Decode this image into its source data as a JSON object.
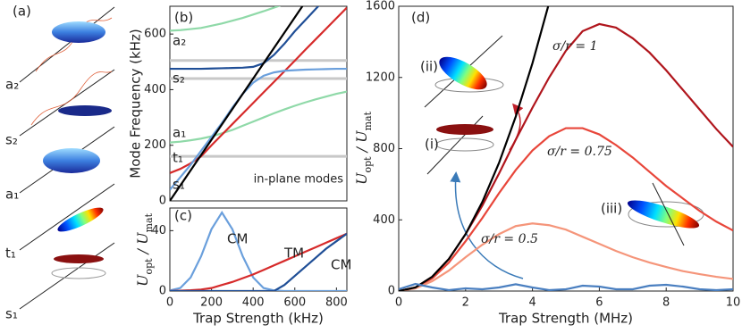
{
  "panel_a": {
    "label": "(a)",
    "modes": [
      "a₂",
      "s₂",
      "a₁",
      "t₁",
      "s₁"
    ]
  },
  "chart_data": [
    {
      "type": "line",
      "panel_label": "(b)",
      "ylabel": "Mode Frequency (kHz)",
      "x": [
        0,
        50,
        100,
        150,
        200,
        250,
        300,
        350,
        400,
        450,
        500,
        550,
        600,
        650,
        700,
        750,
        800,
        850
      ],
      "xlim": [
        0,
        850
      ],
      "ylim": [
        0,
        700
      ],
      "yticks": [
        0,
        200,
        400,
        600
      ],
      "reference_lines": {
        "values": [
          160,
          440,
          505
        ],
        "color": "#c8c8c8"
      },
      "annotation": "in-plane modes",
      "series": [
        {
          "name": "a₂",
          "color": "#8fd9a8",
          "values": [
            612,
            614,
            618,
            622,
            630,
            638,
            648,
            658,
            670,
            682,
            695,
            708,
            null,
            null,
            null,
            null,
            null,
            null
          ]
        },
        {
          "name": "s₂",
          "color": "#1f4e96",
          "values": [
            475,
            475,
            475,
            475,
            476,
            477,
            478,
            479,
            482,
            495,
            525,
            565,
            610,
            650,
            690,
            730,
            null,
            null
          ]
        },
        {
          "name": "a₁",
          "color": "#8fd9a8",
          "values": [
            210,
            213,
            218,
            224,
            232,
            243,
            255,
            270,
            285,
            300,
            315,
            329,
            342,
            354,
            365,
            375,
            385,
            393
          ]
        },
        {
          "name": "t₁",
          "color": "#d62a2a",
          "values": [
            100,
            115,
            135,
            160,
            200,
            238,
            276,
            314,
            352,
            390,
            428,
            466,
            504,
            543,
            581,
            619,
            657,
            695
          ]
        },
        {
          "name": "s₁",
          "color": "#6a9fdc",
          "values": [
            40,
            85,
            130,
            180,
            230,
            280,
            335,
            385,
            425,
            450,
            462,
            468,
            470,
            472,
            473,
            474,
            475,
            475
          ]
        },
        {
          "color": "#000000",
          "values": [
            0,
            55,
            110,
            165,
            220,
            275,
            330,
            385,
            440,
            495,
            550,
            605,
            660,
            715,
            null,
            null,
            null,
            null
          ]
        }
      ]
    },
    {
      "type": "line",
      "panel_label": "(c)",
      "ylabel": [
        {
          "text": "U"
        },
        {
          "text": "opt",
          "sub": true
        },
        {
          "text": " / "
        },
        {
          "text": "U"
        },
        {
          "text": "mat",
          "sub": true
        }
      ],
      "xlabel": "Trap Strength (kHz)",
      "x": [
        0,
        50,
        100,
        150,
        200,
        250,
        300,
        350,
        400,
        450,
        500,
        550,
        600,
        650,
        700,
        750,
        800,
        850
      ],
      "xlim": [
        0,
        850
      ],
      "xticks": [
        0,
        200,
        400,
        600,
        800
      ],
      "ylim": [
        0,
        55
      ],
      "yticks": [
        0,
        40
      ],
      "series": [
        {
          "name": "CM",
          "color": "#6a9fdc",
          "values": [
            0.4,
            2,
            9,
            23,
            41,
            52,
            41,
            23,
            9,
            2,
            0.4,
            0,
            0,
            0,
            0,
            0,
            0,
            0
          ]
        },
        {
          "name": "TM",
          "color": "#d62a2a",
          "values": [
            0,
            0.2,
            0.5,
            1,
            2,
            4,
            6,
            8.5,
            11,
            14,
            17,
            20,
            23,
            26,
            29,
            32,
            35,
            38
          ]
        },
        {
          "name": "CM",
          "color": "#1f4e96",
          "values": [
            0,
            0,
            0,
            0,
            0,
            0,
            0,
            0,
            0,
            0,
            0,
            4,
            10,
            16,
            22,
            28,
            33,
            38
          ]
        }
      ]
    },
    {
      "type": "line",
      "panel_label": "(d)",
      "ylabel": [
        {
          "text": "U"
        },
        {
          "text": "opt",
          "sub": true
        },
        {
          "text": " / "
        },
        {
          "text": "U"
        },
        {
          "text": "mat",
          "sub": true
        }
      ],
      "xlabel": "Trap Strength (MHz)",
      "x": [
        0,
        0.5,
        1,
        1.5,
        2,
        2.5,
        3,
        3.5,
        4,
        4.5,
        5,
        5.5,
        6,
        6.5,
        7,
        7.5,
        8,
        8.5,
        9,
        9.5,
        10
      ],
      "xlim": [
        0,
        10
      ],
      "xticks": [
        0,
        2,
        4,
        6,
        8,
        10
      ],
      "ylim": [
        0,
        1600
      ],
      "yticks": [
        0,
        400,
        800,
        1200,
        1600
      ],
      "insets": [
        "(ii)",
        "(i)",
        "(iii)"
      ],
      "series": [
        {
          "name": "σ/r = 1",
          "color": "#b0151c",
          "values": [
            0,
            20,
            80,
            180,
            320,
            480,
            660,
            850,
            1030,
            1200,
            1350,
            1460,
            1500,
            1480,
            1420,
            1340,
            1240,
            1130,
            1020,
            910,
            810
          ]
        },
        {
          "name": "σ/r = 0.75",
          "color": "#e8463a",
          "values": [
            0,
            18,
            70,
            160,
            280,
            410,
            550,
            680,
            790,
            870,
            915,
            915,
            880,
            820,
            750,
            670,
            590,
            520,
            450,
            390,
            340
          ]
        },
        {
          "name": "σ/r = 0.5",
          "color": "#f5957a",
          "values": [
            0,
            15,
            55,
            115,
            190,
            260,
            320,
            365,
            380,
            370,
            345,
            305,
            265,
            225,
            190,
            160,
            135,
            112,
            95,
            80,
            68
          ]
        },
        {
          "color": "#000000",
          "values": [
            0,
            20,
            80,
            180,
            320,
            500,
            720,
            980,
            1280,
            1620,
            null,
            null,
            null,
            null,
            null,
            null,
            null,
            null,
            null,
            null,
            null
          ]
        },
        {
          "color": "#4a7fc0",
          "values": [
            10,
            40,
            20,
            5,
            15,
            10,
            20,
            38,
            20,
            5,
            10,
            30,
            25,
            10,
            10,
            30,
            35,
            25,
            10,
            5,
            10
          ]
        }
      ]
    }
  ]
}
